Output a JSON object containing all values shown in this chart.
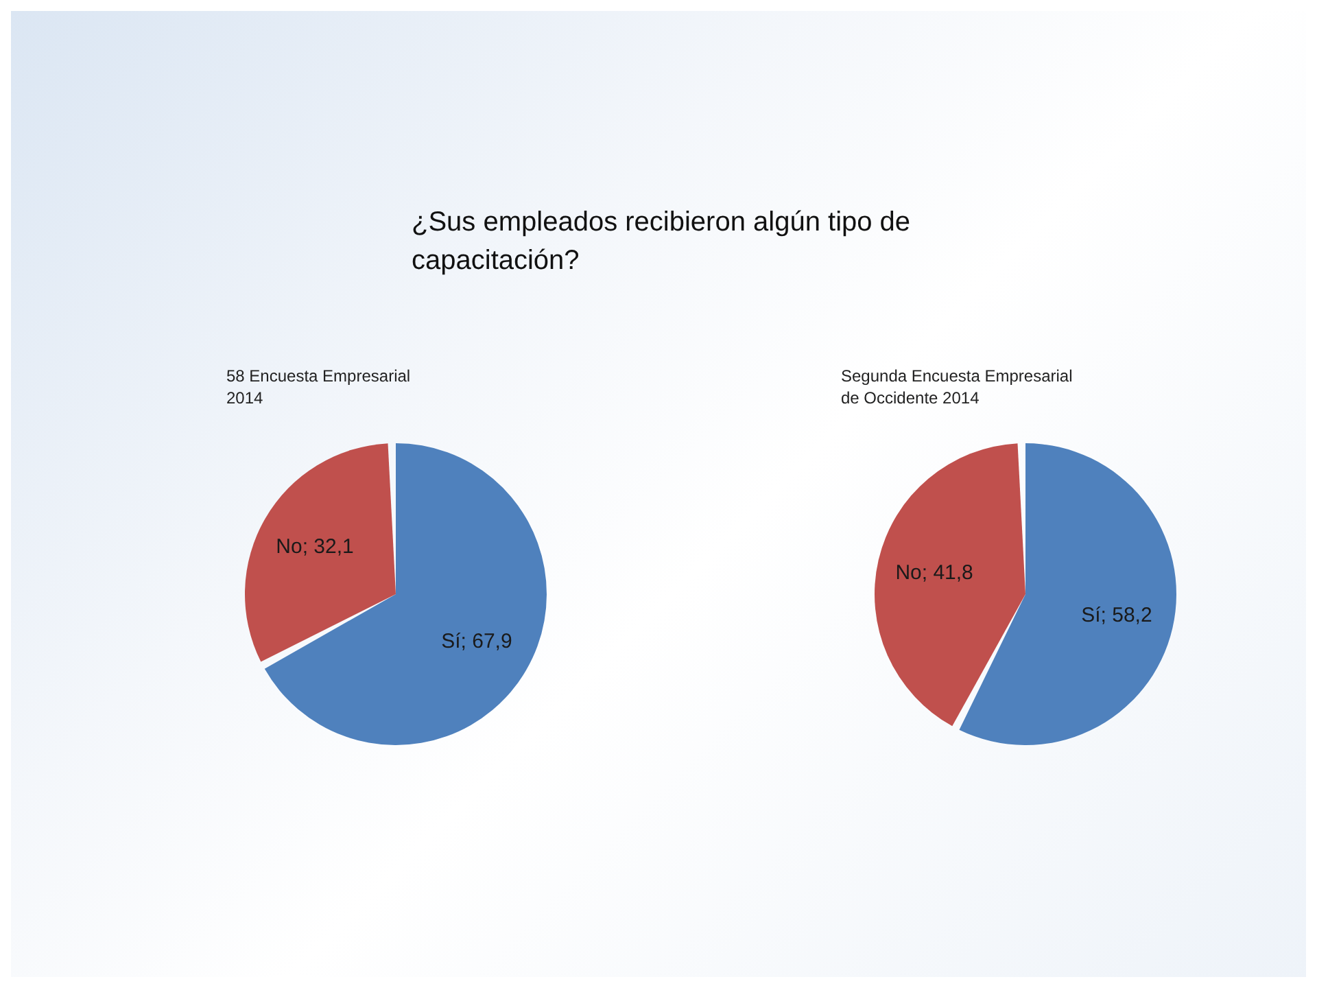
{
  "chart_data": [
    {
      "type": "other",
      "title": "¿Sus empleados recibieron algún tipo de capacitación?"
    },
    {
      "type": "pie",
      "subtitle": "58 Encuesta Empresarial 2014",
      "categories": [
        "Sí",
        "No"
      ],
      "values": [
        67.9,
        32.1
      ],
      "value_labels": [
        "67,9",
        "32,1"
      ],
      "colors": [
        "#4f81bd",
        "#c0504d"
      ],
      "legend": false
    },
    {
      "type": "pie",
      "subtitle": "Segunda Encuesta Empresarial de Occidente 2014",
      "categories": [
        "Sí",
        "No"
      ],
      "values": [
        58.2,
        41.8
      ],
      "value_labels": [
        "58,2",
        "41,8"
      ],
      "colors": [
        "#4f81bd",
        "#c0504d"
      ],
      "legend": false
    }
  ]
}
